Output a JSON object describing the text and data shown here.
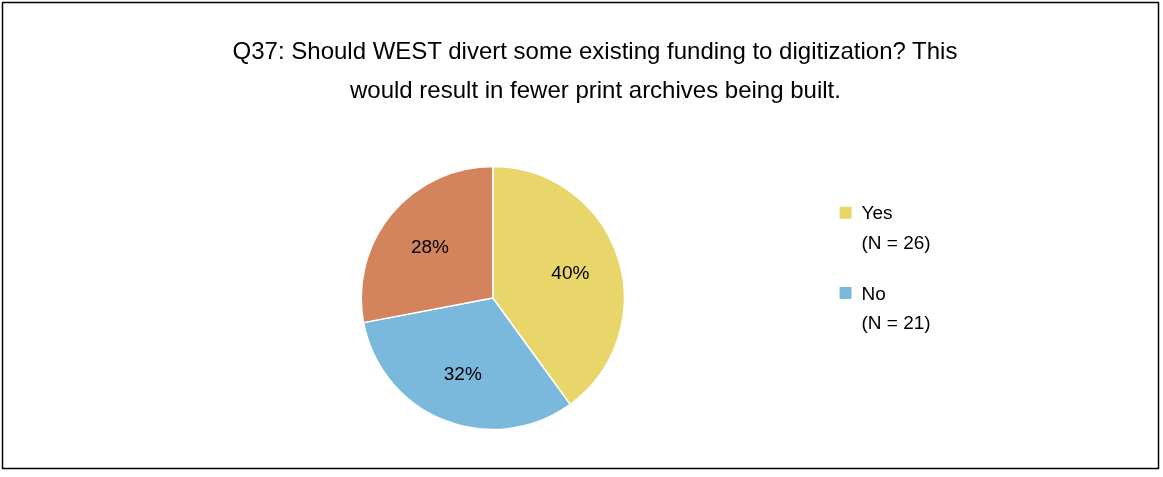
{
  "chart_data": {
    "type": "pie",
    "title": "Q37: Should WEST divert some existing funding to digitization? This\nwould result in fewer print archives being built.",
    "categories": [
      "Yes\n(N = 26)",
      "No\n(N = 21)",
      null
    ],
    "values": [
      40,
      32,
      28
    ],
    "colors": [
      "#e9d66b",
      "#7ab9dc",
      "#d4845c"
    ],
    "value_labels": [
      "40%",
      "32%",
      "28%"
    ],
    "legend": "right"
  }
}
